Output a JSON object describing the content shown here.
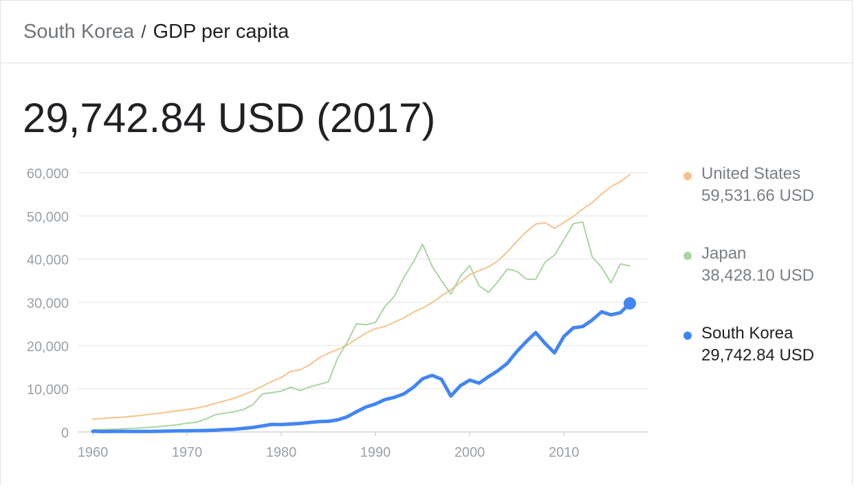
{
  "breadcrumb": {
    "parent": "South Korea",
    "separator": "/",
    "current": "GDP per capita"
  },
  "headline": {
    "value": "29,742.84 USD (2017)"
  },
  "colors": {
    "us": "#f6c28b",
    "japan": "#a8d5a2",
    "korea": "#4285f4",
    "grid": "#ececec",
    "axis_text": "#9aa0a6"
  },
  "legend": [
    {
      "name": "United States",
      "value": "59,531.66 USD",
      "color": "#f6c28b",
      "active": false
    },
    {
      "name": "Japan",
      "value": "38,428.10 USD",
      "color": "#a8d5a2",
      "active": false
    },
    {
      "name": "South Korea",
      "value": "29,742.84 USD",
      "color": "#4285f4",
      "active": true
    }
  ],
  "chart_data": {
    "type": "line",
    "title": "",
    "xlabel": "",
    "ylabel": "",
    "xlim": [
      1960,
      2017
    ],
    "ylim": [
      0,
      60000
    ],
    "grid": true,
    "legend_position": "right",
    "x_ticks": [
      1960,
      1970,
      1980,
      1990,
      2000,
      2010
    ],
    "x_tick_labels": [
      "1960",
      "1970",
      "1980",
      "1990",
      "2000",
      "2010"
    ],
    "y_ticks": [
      0,
      10000,
      20000,
      30000,
      40000,
      50000,
      60000
    ],
    "y_tick_labels": [
      "0",
      "10,000",
      "20,000",
      "30,000",
      "40,000",
      "50,000",
      "60,000"
    ],
    "x": [
      1960,
      1961,
      1962,
      1963,
      1964,
      1965,
      1966,
      1967,
      1968,
      1969,
      1970,
      1971,
      1972,
      1973,
      1974,
      1975,
      1976,
      1977,
      1978,
      1979,
      1980,
      1981,
      1982,
      1983,
      1984,
      1985,
      1986,
      1987,
      1988,
      1989,
      1990,
      1991,
      1992,
      1993,
      1994,
      1995,
      1996,
      1997,
      1998,
      1999,
      2000,
      2001,
      2002,
      2003,
      2004,
      2005,
      2006,
      2007,
      2008,
      2009,
      2010,
      2011,
      2012,
      2013,
      2014,
      2015,
      2016,
      2017
    ],
    "series": [
      {
        "name": "United States",
        "values": [
          3000,
          3100,
          3300,
          3400,
          3600,
          3800,
          4100,
          4300,
          4600,
          4900,
          5200,
          5500,
          6000,
          6600,
          7200,
          7800,
          8600,
          9500,
          10600,
          11700,
          12600,
          14000,
          14400,
          15500,
          17100,
          18200,
          19100,
          20100,
          21500,
          22900,
          23900,
          24400,
          25400,
          26400,
          27700,
          28700,
          29900,
          31500,
          32900,
          34600,
          36400,
          37300,
          38200,
          39600,
          41700,
          44100,
          46300,
          48100,
          48400,
          47100,
          48500,
          49900,
          51600,
          53100,
          55000,
          56800,
          57900,
          59531.66
        ]
      },
      {
        "name": "Japan",
        "values": [
          500,
          560,
          630,
          720,
          840,
          920,
          1060,
          1230,
          1450,
          1670,
          2040,
          2270,
          2970,
          3990,
          4350,
          4660,
          5200,
          6340,
          8820,
          9110,
          9460,
          10360,
          9580,
          10420,
          10980,
          11580,
          17110,
          20750,
          25050,
          24810,
          25370,
          29000,
          31400,
          35700,
          39300,
          43400,
          38400,
          35000,
          31900,
          36000,
          38500,
          33800,
          32300,
          34800,
          37700,
          37200,
          35400,
          35300,
          39300,
          40900,
          44500,
          48200,
          48600,
          40500,
          38100,
          34500,
          38900,
          38428.1
        ]
      },
      {
        "name": "South Korea",
        "values": [
          160,
          94,
          107,
          148,
          126,
          110,
          130,
          160,
          200,
          250,
          280,
          300,
          330,
          420,
          560,
          620,
          830,
          1050,
          1400,
          1750,
          1700,
          1850,
          1980,
          2180,
          2400,
          2460,
          2800,
          3500,
          4700,
          5800,
          6500,
          7500,
          8000,
          8800,
          10300,
          12300,
          13100,
          12200,
          8300,
          10700,
          12000,
          11300,
          12800,
          14200,
          15900,
          18600,
          20900,
          23000,
          20500,
          18300,
          22100,
          24100,
          24400,
          25900,
          27800,
          27100,
          27600,
          29742.84
        ]
      }
    ]
  }
}
